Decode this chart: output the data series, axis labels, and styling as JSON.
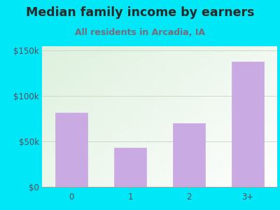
{
  "title": "Median family income by earners",
  "subtitle": "All residents in Arcadia, IA",
  "categories": [
    "0",
    "1",
    "2",
    "3+"
  ],
  "values": [
    82000,
    43000,
    70000,
    138000
  ],
  "bar_color": "#c9aae2",
  "bar_edge_color": "#c9aae2",
  "ylim": [
    0,
    155000
  ],
  "yticks": [
    0,
    50000,
    100000,
    150000
  ],
  "ytick_labels": [
    "$0",
    "$50k",
    "$100k",
    "$150k"
  ],
  "background_outer": "#00e8f8",
  "title_color": "#2a2a2a",
  "subtitle_color": "#7a6a7a",
  "tick_color": "#5a4a5a",
  "title_fontsize": 12.5,
  "subtitle_fontsize": 9,
  "axis_label_fontsize": 8.5,
  "grid_color": "#d0d8c8",
  "bottom_line_color": "#a0a0a0"
}
